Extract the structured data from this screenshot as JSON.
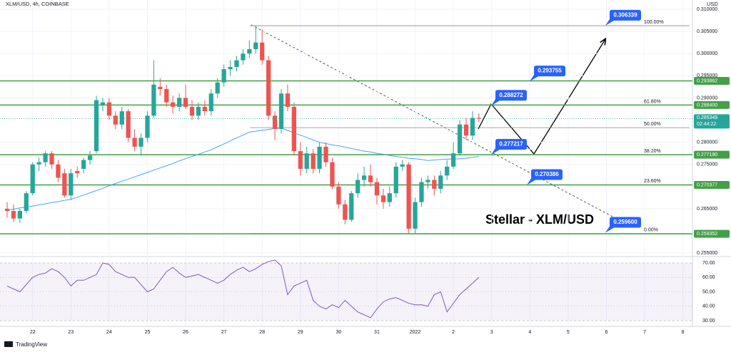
{
  "header": {
    "symbol": "XLM/USD, 4h, COINBASE",
    "currency": "USD"
  },
  "chart_data": [
    {
      "type": "candlestick",
      "title": "Stellar - XLM/USD",
      "up_color": "#26a69a",
      "down_color": "#ef5350",
      "ma_color": "#42a5f5",
      "level_color": "#43a047",
      "xlim": [
        -1.12,
        107.5
      ],
      "xticks": [
        {
          "value": 4,
          "label": "22"
        },
        {
          "value": 10,
          "label": "23"
        },
        {
          "value": 16,
          "label": "24"
        },
        {
          "value": 22,
          "label": "25"
        },
        {
          "value": 28,
          "label": "26"
        },
        {
          "value": 34,
          "label": "27"
        },
        {
          "value": 40,
          "label": "28"
        },
        {
          "value": 46,
          "label": "29"
        },
        {
          "value": 52,
          "label": "30"
        },
        {
          "value": 58,
          "label": "31"
        },
        {
          "value": 64,
          "label": "2022"
        },
        {
          "value": 70,
          "label": "2"
        },
        {
          "value": 76,
          "label": "3"
        },
        {
          "value": 82,
          "label": "4"
        },
        {
          "value": 88,
          "label": "5"
        },
        {
          "value": 94,
          "label": "6"
        },
        {
          "value": 100,
          "label": "7"
        },
        {
          "value": 106,
          "label": "8"
        }
      ],
      "ylim": [
        0.2539,
        0.3121
      ],
      "yticks": [
        {
          "value": 0.31,
          "label": "0.310000"
        },
        {
          "value": 0.305,
          "label": "0.305000"
        },
        {
          "value": 0.3,
          "label": "0.300000"
        },
        {
          "value": 0.295,
          "label": "0.295000"
        },
        {
          "value": 0.29,
          "label": "0.290000"
        },
        {
          "value": 0.28,
          "label": "0.280000"
        },
        {
          "value": 0.275,
          "label": "0.275000"
        },
        {
          "value": 0.265,
          "label": "0.265000"
        },
        {
          "value": 0.255,
          "label": "0.255000"
        }
      ],
      "candles": [
        [
          0.265,
          0.2665,
          0.263,
          0.2645
        ],
        [
          0.2645,
          0.266,
          0.262,
          0.2628
        ],
        [
          0.2628,
          0.265,
          0.2618,
          0.2645
        ],
        [
          0.2645,
          0.269,
          0.264,
          0.2685
        ],
        [
          0.2685,
          0.2755,
          0.268,
          0.275
        ],
        [
          0.275,
          0.2765,
          0.2735,
          0.2755
        ],
        [
          0.2755,
          0.278,
          0.2745,
          0.2775
        ],
        [
          0.2775,
          0.278,
          0.274,
          0.275
        ],
        [
          0.275,
          0.276,
          0.271,
          0.272
        ],
        [
          0.273,
          0.274,
          0.2675,
          0.268
        ],
        [
          0.268,
          0.274,
          0.267,
          0.273
        ],
        [
          0.2735,
          0.2745,
          0.272,
          0.273
        ],
        [
          0.274,
          0.2765,
          0.273,
          0.276
        ],
        [
          0.276,
          0.278,
          0.275,
          0.277
        ],
        [
          0.278,
          0.2905,
          0.2775,
          0.2895
        ],
        [
          0.2885,
          0.29,
          0.287,
          0.289
        ],
        [
          0.289,
          0.29,
          0.285,
          0.286
        ],
        [
          0.286,
          0.287,
          0.283,
          0.284
        ],
        [
          0.284,
          0.288,
          0.283,
          0.287
        ],
        [
          0.287,
          0.2875,
          0.28,
          0.281
        ],
        [
          0.281,
          0.283,
          0.278,
          0.279
        ],
        [
          0.279,
          0.282,
          0.277,
          0.281
        ],
        [
          0.281,
          0.287,
          0.28,
          0.286
        ],
        [
          0.286,
          0.2985,
          0.2855,
          0.293
        ],
        [
          0.2925,
          0.2945,
          0.2905,
          0.292
        ],
        [
          0.292,
          0.293,
          0.288,
          0.289
        ],
        [
          0.289,
          0.2905,
          0.2865,
          0.288
        ],
        [
          0.288,
          0.291,
          0.287,
          0.29
        ],
        [
          0.29,
          0.293,
          0.2875,
          0.288
        ],
        [
          0.288,
          0.2895,
          0.285,
          0.286
        ],
        [
          0.286,
          0.289,
          0.285,
          0.288
        ],
        [
          0.288,
          0.2895,
          0.286,
          0.287
        ],
        [
          0.287,
          0.292,
          0.286,
          0.291
        ],
        [
          0.291,
          0.2945,
          0.29,
          0.2935
        ],
        [
          0.2935,
          0.2975,
          0.2925,
          0.2965
        ],
        [
          0.2965,
          0.2985,
          0.295,
          0.297
        ],
        [
          0.297,
          0.2995,
          0.296,
          0.2985
        ],
        [
          0.2985,
          0.301,
          0.2975,
          0.3
        ],
        [
          0.3,
          0.303,
          0.299,
          0.301
        ],
        [
          0.301,
          0.3063,
          0.3,
          0.3025
        ],
        [
          0.3025,
          0.3055,
          0.2975,
          0.2985
        ],
        [
          0.2985,
          0.2995,
          0.285,
          0.286
        ],
        [
          0.286,
          0.287,
          0.2805,
          0.283
        ],
        [
          0.283,
          0.292,
          0.282,
          0.291
        ],
        [
          0.291,
          0.293,
          0.287,
          0.288
        ],
        [
          0.288,
          0.289,
          0.277,
          0.278
        ],
        [
          0.278,
          0.28,
          0.2725,
          0.274
        ],
        [
          0.274,
          0.279,
          0.273,
          0.2775
        ],
        [
          0.2775,
          0.2785,
          0.273,
          0.274
        ],
        [
          0.274,
          0.28,
          0.273,
          0.279
        ],
        [
          0.279,
          0.28,
          0.2745,
          0.2755
        ],
        [
          0.2755,
          0.2765,
          0.2695,
          0.27
        ],
        [
          0.27,
          0.271,
          0.265,
          0.266
        ],
        [
          0.266,
          0.267,
          0.2615,
          0.2625
        ],
        [
          0.2625,
          0.269,
          0.262,
          0.2685
        ],
        [
          0.2685,
          0.273,
          0.2675,
          0.2715
        ],
        [
          0.2715,
          0.2745,
          0.27,
          0.2725
        ],
        [
          0.2725,
          0.275,
          0.27,
          0.271
        ],
        [
          0.271,
          0.272,
          0.266,
          0.268
        ],
        [
          0.268,
          0.2695,
          0.265,
          0.2665
        ],
        [
          0.2665,
          0.27,
          0.2655,
          0.2685
        ],
        [
          0.2685,
          0.2755,
          0.2675,
          0.2745
        ],
        [
          0.2745,
          0.276,
          0.2735,
          0.275
        ],
        [
          0.275,
          0.2755,
          0.2595,
          0.2605
        ],
        [
          0.2605,
          0.2675,
          0.2595,
          0.2665
        ],
        [
          0.2665,
          0.272,
          0.2655,
          0.271
        ],
        [
          0.271,
          0.2725,
          0.2695,
          0.2715
        ],
        [
          0.2715,
          0.2725,
          0.268,
          0.2695
        ],
        [
          0.2695,
          0.2735,
          0.2685,
          0.2725
        ],
        [
          0.2725,
          0.276,
          0.2715,
          0.2745
        ],
        [
          0.2745,
          0.28,
          0.274,
          0.2775
        ],
        [
          0.2775,
          0.285,
          0.277,
          0.284
        ],
        [
          0.284,
          0.2855,
          0.2805,
          0.2815
        ],
        [
          0.2815,
          0.287,
          0.2805,
          0.2855
        ],
        [
          0.2855,
          0.2865,
          0.2845,
          0.2853
        ]
      ],
      "ma": [
        0.2647,
        0.2649,
        0.2652,
        0.2654,
        0.2656,
        0.2659,
        0.2661,
        0.2664,
        0.2666,
        0.2669,
        0.2671,
        0.2676,
        0.2681,
        0.2686,
        0.2691,
        0.2696,
        0.2702,
        0.2707,
        0.2712,
        0.2717,
        0.2722,
        0.2727,
        0.2732,
        0.2737,
        0.2742,
        0.2747,
        0.2752,
        0.2758,
        0.2763,
        0.2768,
        0.2773,
        0.2778,
        0.2783,
        0.279,
        0.2796,
        0.2803,
        0.281,
        0.2816,
        0.2823,
        0.2825,
        0.2827,
        0.2829,
        0.2831,
        0.2832,
        0.2827,
        0.2821,
        0.2816,
        0.2811,
        0.2805,
        0.28,
        0.2797,
        0.2794,
        0.2792,
        0.2789,
        0.2786,
        0.2783,
        0.278,
        0.2778,
        0.2775,
        0.2773,
        0.277,
        0.2768,
        0.2766,
        0.2764,
        0.2763,
        0.2761,
        0.2759,
        0.276,
        0.2761,
        0.2762,
        0.2762,
        0.2763,
        0.2764,
        0.2766,
        0.2768
      ],
      "levels": [
        {
          "value": 0.293862,
          "label": "0.293862"
        },
        {
          "value": 0.2884,
          "label": "0.288400"
        },
        {
          "value": 0.27719,
          "label": "0.277190"
        },
        {
          "value": 0.270377,
          "label": "0.270377"
        },
        {
          "value": 0.259352,
          "label": "0.259352"
        }
      ],
      "fib_levels": [
        {
          "label": "100.00%",
          "price": 0.3063
        },
        {
          "label": "61.80%",
          "price": 0.2884
        },
        {
          "label": "50.00%",
          "price": 0.2833
        },
        {
          "label": "38.20%",
          "price": 0.2772
        },
        {
          "label": "23.60%",
          "price": 0.2704
        },
        {
          "label": "0.00%",
          "price": 0.2594
        }
      ],
      "callouts": [
        0.306339,
        0.293755,
        0.288272,
        0.277217,
        0.270386,
        0.2596
      ],
      "callout_labels": [
        "0.306339",
        "0.293755",
        "0.288272",
        "0.277217",
        "0.270386",
        "0.259600"
      ],
      "last_price": {
        "value": 0.285349,
        "label": "0.285349"
      },
      "countdown": "02:44:22"
    },
    {
      "type": "line",
      "color": "#7e57c2",
      "ylim": [
        26,
        73.5
      ],
      "yticks": [
        {
          "value": 70,
          "label": "70.00"
        },
        {
          "value": 60,
          "label": "60.00"
        },
        {
          "value": 50,
          "label": "50.00"
        },
        {
          "value": 40,
          "label": "40.00"
        },
        {
          "value": 30,
          "label": "30.00"
        }
      ],
      "values": [
        54,
        52,
        50,
        55,
        60,
        62,
        63,
        66,
        64,
        60,
        54,
        58,
        58,
        60,
        62,
        70,
        69,
        64,
        62,
        60,
        60,
        55,
        50,
        52,
        58,
        64,
        67,
        63,
        60,
        61,
        62,
        60,
        58,
        56,
        58,
        62,
        65,
        67,
        64,
        66,
        69,
        71,
        72,
        68,
        48,
        54,
        56,
        58,
        44,
        40,
        38,
        41,
        39,
        44,
        40,
        36,
        34,
        32,
        38,
        43,
        45,
        46,
        44,
        42,
        41,
        41,
        40,
        48,
        50,
        36,
        42,
        48,
        52,
        56,
        60
      ]
    }
  ],
  "footer": {
    "brand": "TradingView"
  }
}
